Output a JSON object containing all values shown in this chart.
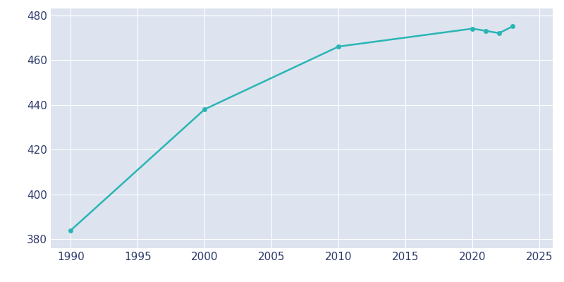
{
  "years": [
    1990,
    2000,
    2010,
    2020,
    2021,
    2022,
    2023
  ],
  "population": [
    384,
    438,
    466,
    474,
    473,
    472,
    475
  ],
  "line_color": "#2ab5b5",
  "marker_color": "#2ab5b5",
  "plot_bg_color": "#dde4ef",
  "fig_bg_color": "#ffffff",
  "grid_color": "#ffffff",
  "text_color": "#2d3a6b",
  "ylim": [
    376,
    483
  ],
  "xlim": [
    1988.5,
    2026
  ],
  "yticks": [
    380,
    400,
    420,
    440,
    460,
    480
  ],
  "xticks": [
    1990,
    1995,
    2000,
    2005,
    2010,
    2015,
    2020,
    2025
  ],
  "linewidth": 1.8,
  "markersize": 4.5,
  "tick_labelsize": 11
}
